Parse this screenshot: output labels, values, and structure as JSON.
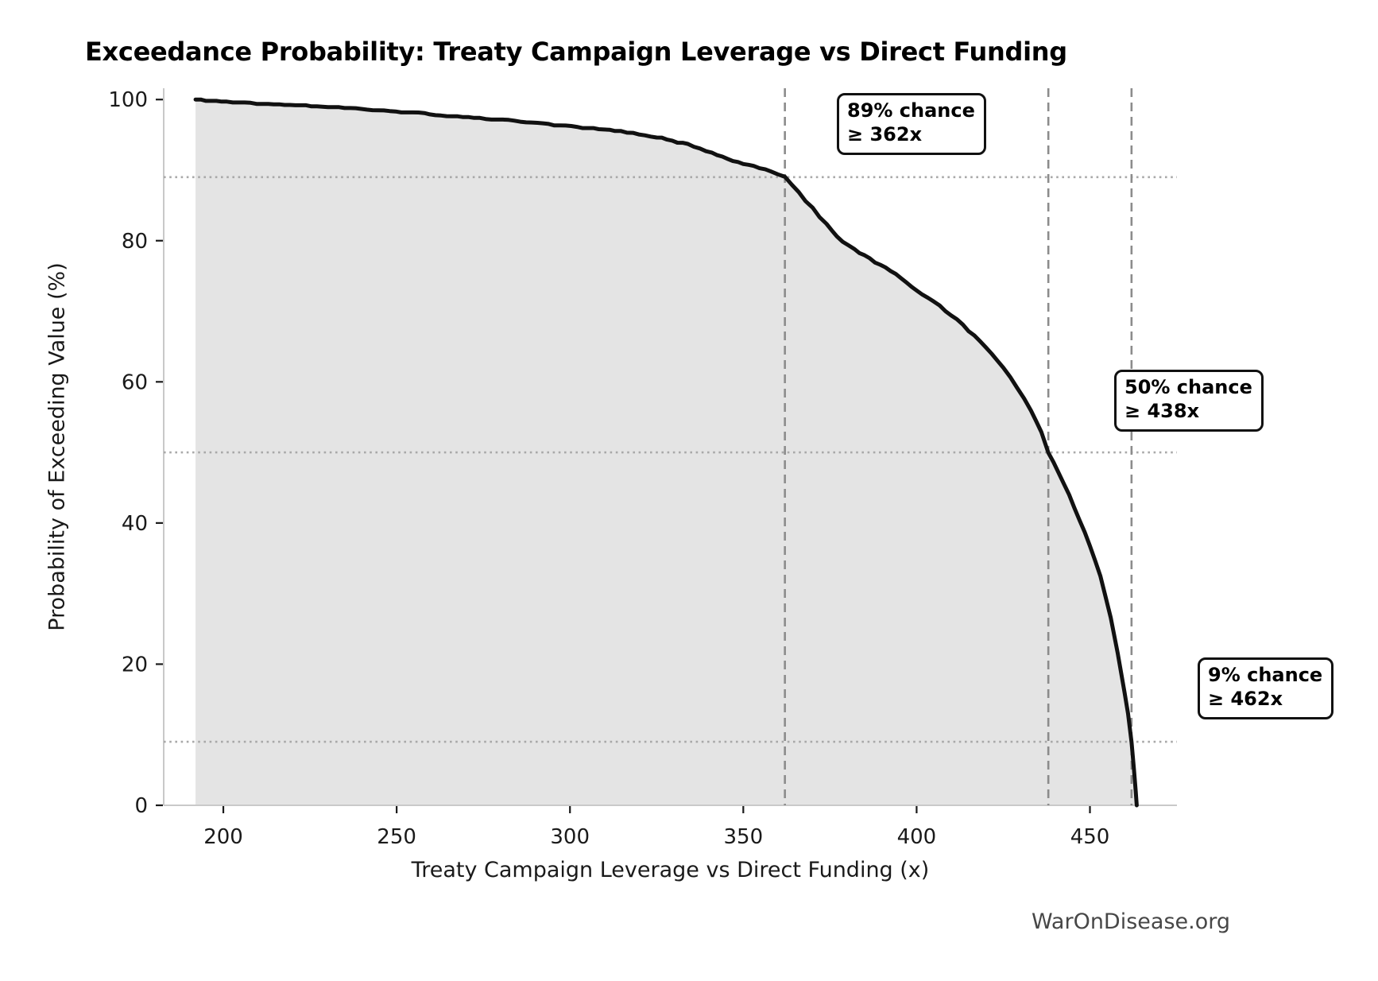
{
  "chart_data": {
    "type": "line",
    "variant": "exceedance-probability-curve",
    "title": "Exceedance Probability: Treaty Campaign Leverage vs Direct Funding",
    "xlabel": "Treaty Campaign Leverage vs Direct Funding (x)",
    "ylabel": "Probability of Exceeding Value (%)",
    "x_ticks": [
      200,
      250,
      300,
      350,
      400,
      450
    ],
    "y_ticks": [
      0,
      20,
      40,
      60,
      80,
      100
    ],
    "xlim": [
      182.8,
      475.1
    ],
    "ylim": [
      0,
      101.6
    ],
    "grid": "off (guide lines only at annotated values)",
    "legend_position": "none",
    "fill_under_curve": true,
    "points": [
      [
        192,
        100.0
      ],
      [
        201,
        99.7
      ],
      [
        213,
        99.4
      ],
      [
        227,
        99.1
      ],
      [
        243,
        98.6
      ],
      [
        258,
        98.0
      ],
      [
        274,
        97.4
      ],
      [
        289,
        96.8
      ],
      [
        302,
        96.1
      ],
      [
        313,
        95.6
      ],
      [
        325,
        94.7
      ],
      [
        334,
        93.6
      ],
      [
        341,
        92.5
      ],
      [
        347,
        91.3
      ],
      [
        353,
        90.5
      ],
      [
        358,
        89.8
      ],
      [
        362,
        89.0
      ],
      [
        366,
        86.8
      ],
      [
        370,
        84.6
      ],
      [
        374,
        82.3
      ],
      [
        377,
        80.5
      ],
      [
        382,
        78.8
      ],
      [
        388,
        77.0
      ],
      [
        394,
        75.2
      ],
      [
        400,
        73.0
      ],
      [
        405,
        71.3
      ],
      [
        410,
        69.5
      ],
      [
        415,
        67.3
      ],
      [
        420,
        64.8
      ],
      [
        425,
        62.0
      ],
      [
        429,
        59.2
      ],
      [
        433,
        56.0
      ],
      [
        436,
        52.8
      ],
      [
        438,
        50.0
      ],
      [
        441,
        47.0
      ],
      [
        444,
        44.0
      ],
      [
        447,
        40.5
      ],
      [
        450,
        36.8
      ],
      [
        453,
        32.5
      ],
      [
        456,
        26.5
      ],
      [
        458,
        21.5
      ],
      [
        460,
        16.0
      ],
      [
        461,
        13.0
      ],
      [
        462,
        9.0
      ],
      [
        462.7,
        5.0
      ],
      [
        463.2,
        2.0
      ],
      [
        463.5,
        0.0
      ]
    ],
    "annotations": [
      {
        "line1": "89% chance",
        "line2": "≥ 362x",
        "value": 362,
        "prob": 89
      },
      {
        "line1": "50% chance",
        "line2": "≥ 438x",
        "value": 438,
        "prob": 50
      },
      {
        "line1": "9% chance",
        "line2": "≥ 462x",
        "value": 462,
        "prob": 9
      }
    ],
    "colors": {
      "curve": "#111111",
      "fill": "#e4e4e4",
      "dashed_guides": "#8c8c8c",
      "dotted_guides": "#a9a9a9",
      "spine": "#c9c9c9",
      "tick_text": "#1a1a1a",
      "watermark": "#474747"
    }
  },
  "watermark": "WarOnDisease.org"
}
